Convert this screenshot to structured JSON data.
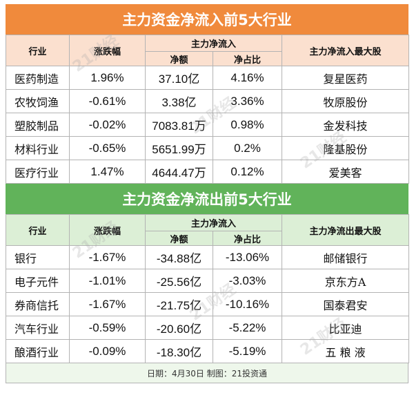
{
  "inflow": {
    "title": "主力资金净流入前5大行业",
    "headers": {
      "industry": "行业",
      "change": "涨跌幅",
      "main_flow": "主力净流入",
      "net_amount": "净额",
      "net_ratio": "净占比",
      "top_stock": "主力净流入最大股"
    },
    "rows": [
      {
        "industry": "医药制造",
        "change": "1.96%",
        "amount": "37.10亿",
        "ratio": "4.16%",
        "stock": "复星医药"
      },
      {
        "industry": "农牧饲渔",
        "change": "-0.61%",
        "amount": "3.38亿",
        "ratio": "3.36%",
        "stock": "牧原股份"
      },
      {
        "industry": "塑胶制品",
        "change": "-0.02%",
        "amount": "7083.81万",
        "ratio": "0.98%",
        "stock": "金发科技"
      },
      {
        "industry": "材料行业",
        "change": "-0.65%",
        "amount": "5651.99万",
        "ratio": "0.2%",
        "stock": "隆基股份"
      },
      {
        "industry": "医疗行业",
        "change": "1.47%",
        "amount": "4644.47万",
        "ratio": "0.12%",
        "stock": "爱美客"
      }
    ]
  },
  "outflow": {
    "title": "主力资金净流出前5大行业",
    "headers": {
      "industry": "行业",
      "change": "涨跌幅",
      "main_flow": "主力净流入",
      "net_amount": "净额",
      "net_ratio": "净占比",
      "top_stock": "主力净流出最大股"
    },
    "rows": [
      {
        "industry": "银行",
        "change": "-1.67%",
        "amount": "-34.88亿",
        "ratio": "-13.06%",
        "stock": "邮储银行"
      },
      {
        "industry": "电子元件",
        "change": "-1.01%",
        "amount": "-25.56亿",
        "ratio": "-3.03%",
        "stock": "京东方A"
      },
      {
        "industry": "券商信托",
        "change": "-1.67%",
        "amount": "-21.75亿",
        "ratio": "-10.16%",
        "stock": "国泰君安"
      },
      {
        "industry": "汽车行业",
        "change": "-0.59%",
        "amount": "-20.60亿",
        "ratio": "-5.22%",
        "stock": "比亚迪"
      },
      {
        "industry": "酿酒行业",
        "change": "-0.09%",
        "amount": "-18.30亿",
        "ratio": "-5.19%",
        "stock": "五 粮 液"
      }
    ]
  },
  "footer": "日期：4月30日 制图：21投资通",
  "watermark": "21财经",
  "colors": {
    "inflow_title": "#f08a3c",
    "inflow_header": "#fbe0cf",
    "outflow_title": "#61b35a",
    "outflow_header": "#dcefd6"
  }
}
